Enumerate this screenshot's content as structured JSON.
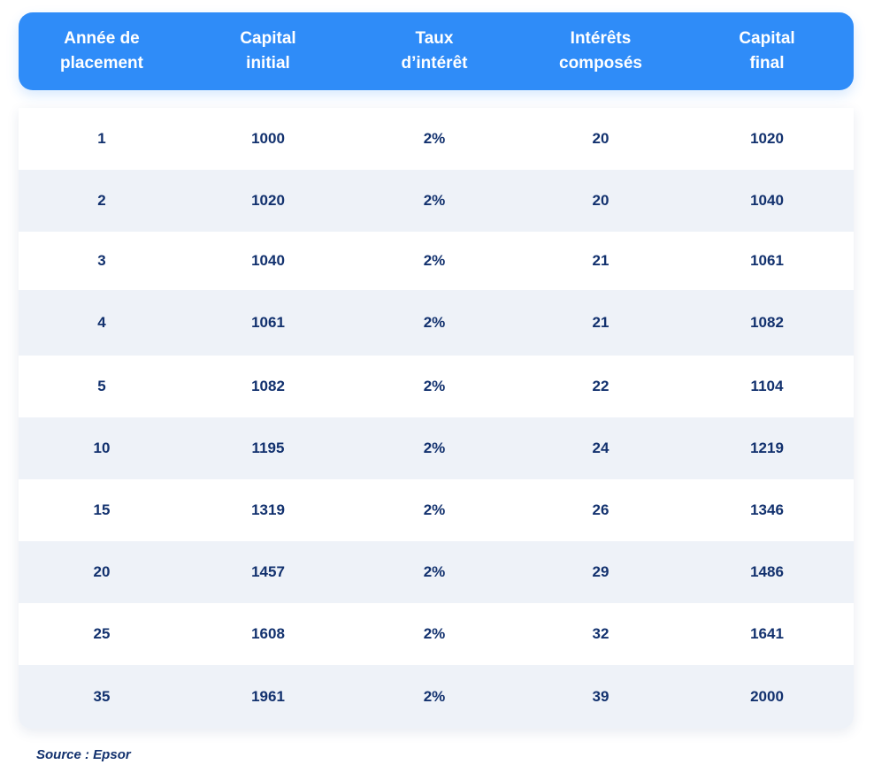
{
  "chart_data": {
    "type": "table",
    "columns": [
      [
        "Année de",
        "placement"
      ],
      [
        "Capital",
        "initial"
      ],
      [
        "Taux",
        "d’intérêt"
      ],
      [
        "Intérêts",
        "composés"
      ],
      [
        "Capital",
        "final"
      ]
    ],
    "rows": [
      [
        "1",
        "1000",
        "2%",
        "20",
        "1020"
      ],
      [
        "2",
        "1020",
        "2%",
        "20",
        "1040"
      ],
      [
        "3",
        "1040",
        "2%",
        "21",
        "1061"
      ],
      [
        "4",
        "1061",
        "2%",
        "21",
        "1082"
      ],
      [
        "5",
        "1082",
        "2%",
        "22",
        "1104"
      ],
      [
        "10",
        "1195",
        "2%",
        "24",
        "1219"
      ],
      [
        "15",
        "1319",
        "2%",
        "26",
        "1346"
      ],
      [
        "20",
        "1457",
        "2%",
        "29",
        "1486"
      ],
      [
        "25",
        "1608",
        "2%",
        "32",
        "1641"
      ],
      [
        "35",
        "1961",
        "2%",
        "39",
        "2000"
      ]
    ]
  },
  "source": "Source : Epsor",
  "colors": {
    "header_background": "#2f8cf8",
    "header_text": "#ffffff",
    "body_text": "#12316e",
    "row_alternate": "#eef2f8"
  }
}
